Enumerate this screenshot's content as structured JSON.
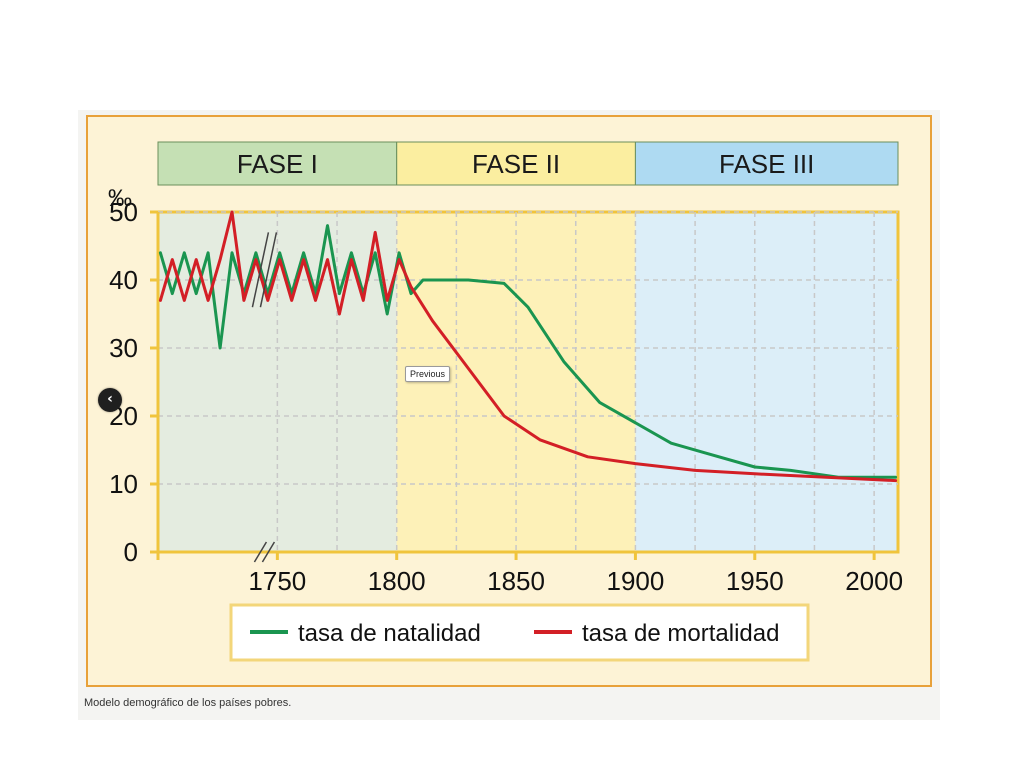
{
  "viewer": {
    "caption": "Modelo demográfico de los países pobres.",
    "prev_button_label": "‹",
    "prev_tooltip": "Previous"
  },
  "colors": {
    "frame_border": "#e8a13a",
    "frame_bg": "#fdf3d6",
    "phase1": "#c5e0b4",
    "phase1_plot": "#e4ece0",
    "phase2": "#fbeea0",
    "phase2_plot": "#fdf1b8",
    "phase3": "#aedaf2",
    "phase3_plot": "#dceef8",
    "natalidad": "#1a9550",
    "mortalidad": "#d31f26",
    "legend_border": "#f3d67a",
    "axis": "#f0c43c",
    "grid": "#c8c8c8"
  },
  "chart_data": {
    "type": "line",
    "title": "",
    "ylabel": "‰",
    "xlabel": "",
    "xlim": [
      1700,
      2010
    ],
    "ylim": [
      0,
      50
    ],
    "grid": true,
    "legend_position": "bottom",
    "xticks": [
      1750,
      1800,
      1850,
      1900,
      1950,
      2000
    ],
    "yticks": [
      0,
      10,
      20,
      30,
      40,
      50
    ],
    "phases": [
      {
        "label": "FASE I",
        "start": 1700,
        "end": 1800
      },
      {
        "label": "FASE II",
        "start": 1800,
        "end": 1900
      },
      {
        "label": "FASE III",
        "start": 1900,
        "end": 2010
      }
    ],
    "axis_break": 1745,
    "series": [
      {
        "name": "tasa de natalidad",
        "color": "#1a9550",
        "points": [
          [
            1701,
            44
          ],
          [
            1706,
            38
          ],
          [
            1711,
            44
          ],
          [
            1716,
            38
          ],
          [
            1721,
            44
          ],
          [
            1726,
            30
          ],
          [
            1731,
            44
          ],
          [
            1736,
            38
          ],
          [
            1741,
            44
          ],
          [
            1746,
            38
          ],
          [
            1751,
            44
          ],
          [
            1756,
            38
          ],
          [
            1761,
            44
          ],
          [
            1766,
            38
          ],
          [
            1771,
            48
          ],
          [
            1776,
            38
          ],
          [
            1781,
            44
          ],
          [
            1786,
            38
          ],
          [
            1791,
            44
          ],
          [
            1796,
            35
          ],
          [
            1801,
            44
          ],
          [
            1806,
            38
          ],
          [
            1811,
            40
          ],
          [
            1830,
            40
          ],
          [
            1845,
            39.5
          ],
          [
            1855,
            36
          ],
          [
            1870,
            28
          ],
          [
            1885,
            22
          ],
          [
            1900,
            19
          ],
          [
            1915,
            16
          ],
          [
            1930,
            14.5
          ],
          [
            1950,
            12.5
          ],
          [
            1965,
            12
          ],
          [
            1985,
            11
          ],
          [
            2009,
            11
          ]
        ]
      },
      {
        "name": "tasa de mortalidad",
        "color": "#d31f26",
        "points": [
          [
            1701,
            37
          ],
          [
            1706,
            43
          ],
          [
            1711,
            37
          ],
          [
            1716,
            43
          ],
          [
            1721,
            37
          ],
          [
            1726,
            43
          ],
          [
            1731,
            50
          ],
          [
            1736,
            37
          ],
          [
            1741,
            43
          ],
          [
            1746,
            37
          ],
          [
            1751,
            43
          ],
          [
            1756,
            37
          ],
          [
            1761,
            43
          ],
          [
            1766,
            37
          ],
          [
            1771,
            43
          ],
          [
            1776,
            35
          ],
          [
            1781,
            43
          ],
          [
            1786,
            37
          ],
          [
            1791,
            47
          ],
          [
            1796,
            37
          ],
          [
            1801,
            43
          ],
          [
            1806,
            39
          ],
          [
            1815,
            34
          ],
          [
            1830,
            27
          ],
          [
            1845,
            20
          ],
          [
            1860,
            16.5
          ],
          [
            1880,
            14
          ],
          [
            1900,
            13
          ],
          [
            1925,
            12
          ],
          [
            1950,
            11.5
          ],
          [
            1980,
            11
          ],
          [
            2009,
            10.5
          ]
        ]
      }
    ]
  }
}
